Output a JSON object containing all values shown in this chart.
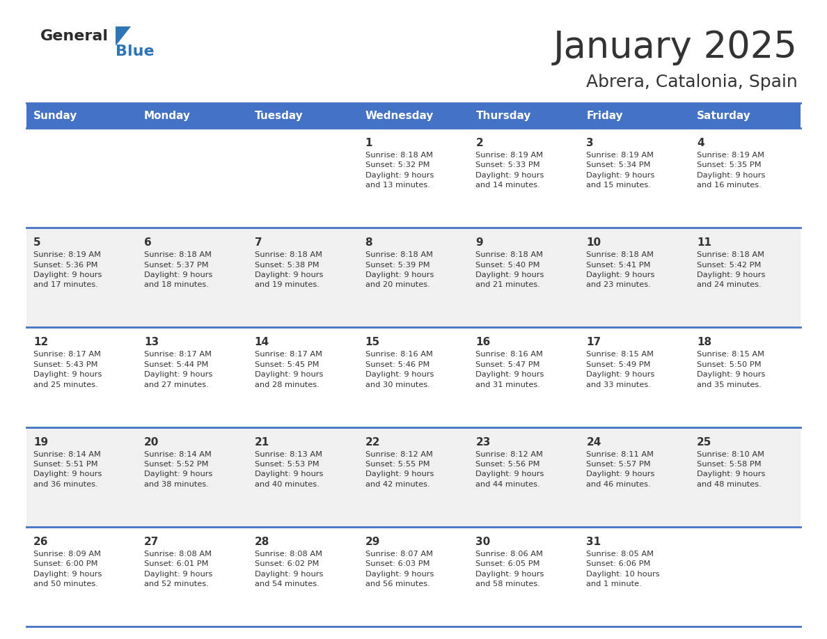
{
  "title": "January 2025",
  "subtitle": "Abrera, Catalonia, Spain",
  "header_bg": "#4472C4",
  "header_text_color": "#FFFFFF",
  "days_of_week": [
    "Sunday",
    "Monday",
    "Tuesday",
    "Wednesday",
    "Thursday",
    "Friday",
    "Saturday"
  ],
  "bg_color": "#FFFFFF",
  "cell_bg_even": "#FFFFFF",
  "cell_bg_odd": "#F0F0F0",
  "border_color": "#4472C4",
  "text_color": "#333333",
  "logo_general_color": "#2B2B2B",
  "logo_blue_color": "#2E75B6",
  "weeks": [
    [
      {
        "day": null,
        "info": null
      },
      {
        "day": null,
        "info": null
      },
      {
        "day": null,
        "info": null
      },
      {
        "day": "1",
        "info": "Sunrise: 8:18 AM\nSunset: 5:32 PM\nDaylight: 9 hours\nand 13 minutes."
      },
      {
        "day": "2",
        "info": "Sunrise: 8:19 AM\nSunset: 5:33 PM\nDaylight: 9 hours\nand 14 minutes."
      },
      {
        "day": "3",
        "info": "Sunrise: 8:19 AM\nSunset: 5:34 PM\nDaylight: 9 hours\nand 15 minutes."
      },
      {
        "day": "4",
        "info": "Sunrise: 8:19 AM\nSunset: 5:35 PM\nDaylight: 9 hours\nand 16 minutes."
      }
    ],
    [
      {
        "day": "5",
        "info": "Sunrise: 8:19 AM\nSunset: 5:36 PM\nDaylight: 9 hours\nand 17 minutes."
      },
      {
        "day": "6",
        "info": "Sunrise: 8:18 AM\nSunset: 5:37 PM\nDaylight: 9 hours\nand 18 minutes."
      },
      {
        "day": "7",
        "info": "Sunrise: 8:18 AM\nSunset: 5:38 PM\nDaylight: 9 hours\nand 19 minutes."
      },
      {
        "day": "8",
        "info": "Sunrise: 8:18 AM\nSunset: 5:39 PM\nDaylight: 9 hours\nand 20 minutes."
      },
      {
        "day": "9",
        "info": "Sunrise: 8:18 AM\nSunset: 5:40 PM\nDaylight: 9 hours\nand 21 minutes."
      },
      {
        "day": "10",
        "info": "Sunrise: 8:18 AM\nSunset: 5:41 PM\nDaylight: 9 hours\nand 23 minutes."
      },
      {
        "day": "11",
        "info": "Sunrise: 8:18 AM\nSunset: 5:42 PM\nDaylight: 9 hours\nand 24 minutes."
      }
    ],
    [
      {
        "day": "12",
        "info": "Sunrise: 8:17 AM\nSunset: 5:43 PM\nDaylight: 9 hours\nand 25 minutes."
      },
      {
        "day": "13",
        "info": "Sunrise: 8:17 AM\nSunset: 5:44 PM\nDaylight: 9 hours\nand 27 minutes."
      },
      {
        "day": "14",
        "info": "Sunrise: 8:17 AM\nSunset: 5:45 PM\nDaylight: 9 hours\nand 28 minutes."
      },
      {
        "day": "15",
        "info": "Sunrise: 8:16 AM\nSunset: 5:46 PM\nDaylight: 9 hours\nand 30 minutes."
      },
      {
        "day": "16",
        "info": "Sunrise: 8:16 AM\nSunset: 5:47 PM\nDaylight: 9 hours\nand 31 minutes."
      },
      {
        "day": "17",
        "info": "Sunrise: 8:15 AM\nSunset: 5:49 PM\nDaylight: 9 hours\nand 33 minutes."
      },
      {
        "day": "18",
        "info": "Sunrise: 8:15 AM\nSunset: 5:50 PM\nDaylight: 9 hours\nand 35 minutes."
      }
    ],
    [
      {
        "day": "19",
        "info": "Sunrise: 8:14 AM\nSunset: 5:51 PM\nDaylight: 9 hours\nand 36 minutes."
      },
      {
        "day": "20",
        "info": "Sunrise: 8:14 AM\nSunset: 5:52 PM\nDaylight: 9 hours\nand 38 minutes."
      },
      {
        "day": "21",
        "info": "Sunrise: 8:13 AM\nSunset: 5:53 PM\nDaylight: 9 hours\nand 40 minutes."
      },
      {
        "day": "22",
        "info": "Sunrise: 8:12 AM\nSunset: 5:55 PM\nDaylight: 9 hours\nand 42 minutes."
      },
      {
        "day": "23",
        "info": "Sunrise: 8:12 AM\nSunset: 5:56 PM\nDaylight: 9 hours\nand 44 minutes."
      },
      {
        "day": "24",
        "info": "Sunrise: 8:11 AM\nSunset: 5:57 PM\nDaylight: 9 hours\nand 46 minutes."
      },
      {
        "day": "25",
        "info": "Sunrise: 8:10 AM\nSunset: 5:58 PM\nDaylight: 9 hours\nand 48 minutes."
      }
    ],
    [
      {
        "day": "26",
        "info": "Sunrise: 8:09 AM\nSunset: 6:00 PM\nDaylight: 9 hours\nand 50 minutes."
      },
      {
        "day": "27",
        "info": "Sunrise: 8:08 AM\nSunset: 6:01 PM\nDaylight: 9 hours\nand 52 minutes."
      },
      {
        "day": "28",
        "info": "Sunrise: 8:08 AM\nSunset: 6:02 PM\nDaylight: 9 hours\nand 54 minutes."
      },
      {
        "day": "29",
        "info": "Sunrise: 8:07 AM\nSunset: 6:03 PM\nDaylight: 9 hours\nand 56 minutes."
      },
      {
        "day": "30",
        "info": "Sunrise: 8:06 AM\nSunset: 6:05 PM\nDaylight: 9 hours\nand 58 minutes."
      },
      {
        "day": "31",
        "info": "Sunrise: 8:05 AM\nSunset: 6:06 PM\nDaylight: 10 hours\nand 1 minute."
      },
      {
        "day": null,
        "info": null
      }
    ]
  ]
}
